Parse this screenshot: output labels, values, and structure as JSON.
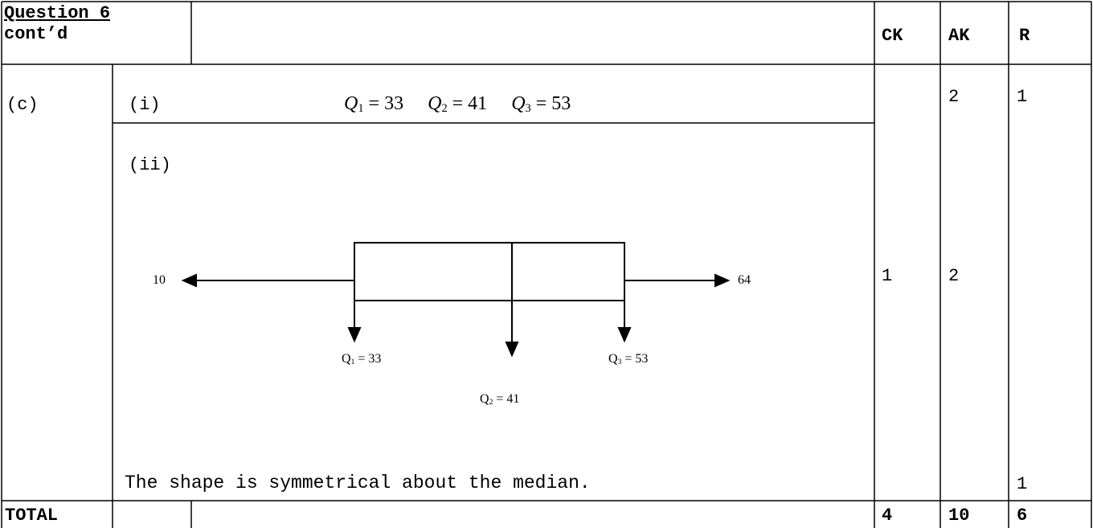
{
  "header": {
    "title": "Question 6",
    "subtitle": "cont’d",
    "columns": [
      "CK",
      "AK",
      "R"
    ]
  },
  "part": "(c)",
  "sub_i": {
    "label": "(i)",
    "equation": [
      {
        "symbol": "Q",
        "index": "1",
        "rhs": "= 33"
      },
      {
        "symbol": "Q",
        "index": "2",
        "rhs": "= 41"
      },
      {
        "symbol": "Q",
        "index": "3",
        "rhs": "= 53"
      }
    ]
  },
  "sub_ii": {
    "label": "(ii)",
    "boxplot": {
      "min": "10",
      "max": "64",
      "q1": {
        "symbol": "Q",
        "index": "1",
        "rhs": "= 33"
      },
      "q2": {
        "symbol": "Q",
        "index": "2",
        "rhs": "= 41"
      },
      "q3": {
        "symbol": "Q",
        "index": "3",
        "rhs": "= 53"
      }
    },
    "statement": "The shape is symmetrical about the median."
  },
  "marks": {
    "ak_i": 2,
    "r_i": 1,
    "ck_ii": 1,
    "ak_ii": 2,
    "r_ii": 1
  },
  "total": {
    "label": "TOTAL",
    "ck": 4,
    "ak": 10,
    "r": 6
  }
}
